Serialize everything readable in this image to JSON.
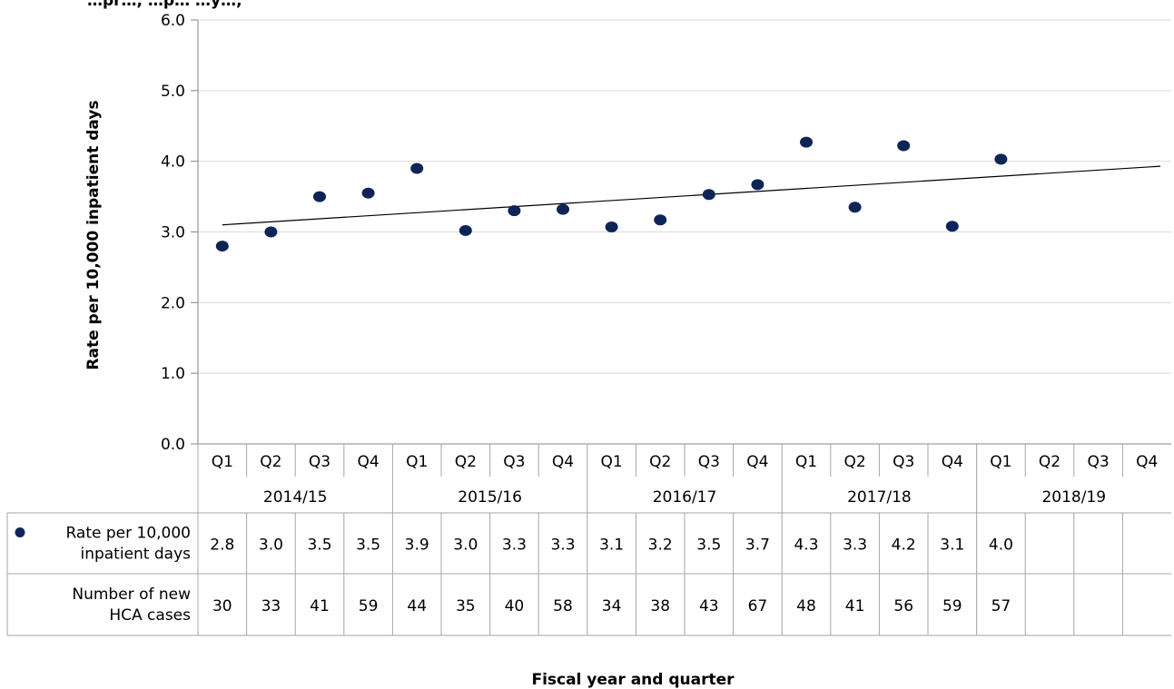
{
  "chart_data": {
    "type": "scatter",
    "title_fragment": "…pr…, …p… …y…,",
    "ylabel": "Rate per 10,000 inpatient days",
    "xlabel": "Fiscal year and quarter",
    "ylim": [
      0,
      6
    ],
    "y_ticks": [
      "0.0",
      "1.0",
      "2.0",
      "3.0",
      "4.0",
      "5.0",
      "6.0"
    ],
    "grid": "horizontal",
    "marker_color": "#0f2456",
    "trendline_color": "#000000",
    "categories": [
      "2014/15 Q1",
      "2014/15 Q2",
      "2014/15 Q3",
      "2014/15 Q4",
      "2015/16 Q1",
      "2015/16 Q2",
      "2015/16 Q3",
      "2015/16 Q4",
      "2016/17 Q1",
      "2016/17 Q2",
      "2016/17 Q3",
      "2016/17 Q4",
      "2017/18 Q1",
      "2017/18 Q2",
      "2017/18 Q3",
      "2017/18 Q4",
      "2018/19 Q1",
      "2018/19 Q2",
      "2018/19 Q3",
      "2018/19 Q4"
    ],
    "quarters": [
      "Q1",
      "Q2",
      "Q3",
      "Q4",
      "Q1",
      "Q2",
      "Q3",
      "Q4",
      "Q1",
      "Q2",
      "Q3",
      "Q4",
      "Q1",
      "Q2",
      "Q3",
      "Q4",
      "Q1",
      "Q2",
      "Q3",
      "Q4"
    ],
    "fiscal_years": [
      "2014/15",
      "2015/16",
      "2016/17",
      "2017/18",
      "2018/19"
    ],
    "plotted_values": [
      2.8,
      3.0,
      3.5,
      3.55,
      3.9,
      3.02,
      3.3,
      3.32,
      3.07,
      3.17,
      3.53,
      3.67,
      4.27,
      3.35,
      4.22,
      3.08,
      4.03
    ],
    "trendline": {
      "start": 3.1,
      "end": 3.93
    },
    "series": [
      {
        "name": "Rate per 10,000 inpatient days",
        "table_label_lines": [
          "Rate per 10,000",
          "inpatient days"
        ],
        "values": [
          "2.8",
          "3.0",
          "3.5",
          "3.5",
          "3.9",
          "3.0",
          "3.3",
          "3.3",
          "3.1",
          "3.2",
          "3.5",
          "3.7",
          "4.3",
          "3.3",
          "4.2",
          "3.1",
          "4.0",
          "",
          "",
          ""
        ]
      },
      {
        "name": "Number of new HCA cases",
        "table_label_lines": [
          "Number of new",
          "HCA cases"
        ],
        "values": [
          "30",
          "33",
          "41",
          "59",
          "44",
          "35",
          "40",
          "58",
          "34",
          "38",
          "43",
          "67",
          "48",
          "41",
          "56",
          "59",
          "57",
          "",
          "",
          ""
        ]
      }
    ]
  }
}
